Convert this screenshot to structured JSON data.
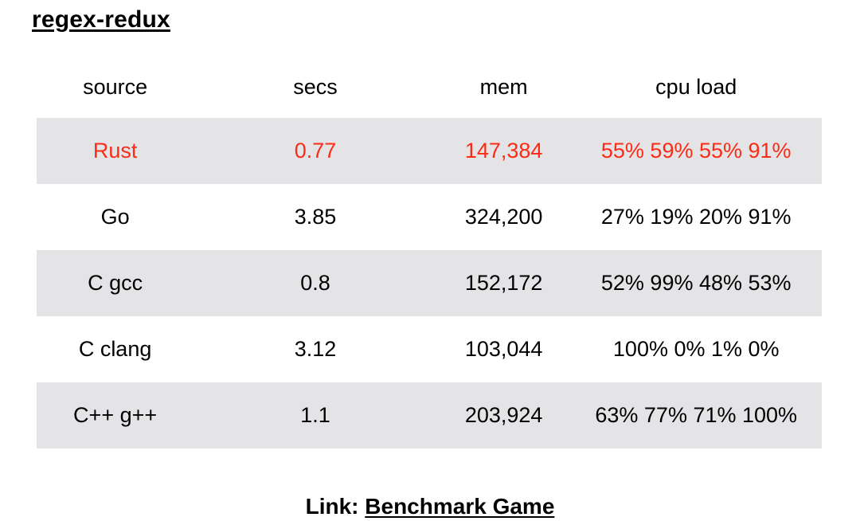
{
  "title": "regex-redux",
  "chart_data": {
    "type": "table",
    "title": "regex-redux",
    "columns": [
      "source",
      "secs",
      "mem",
      "cpu load"
    ],
    "rows": [
      [
        "Rust",
        "0.77",
        "147,384",
        "55% 59% 55% 91%"
      ],
      [
        "Go",
        "3.85",
        "324,200",
        "27% 19% 20% 91%"
      ],
      [
        "C gcc",
        "0.8",
        "152,172",
        "52% 99% 48% 53%"
      ],
      [
        "C clang",
        "3.12",
        "103,044",
        "100% 0% 1% 0%"
      ],
      [
        "C++ g++",
        "1.1",
        "203,924",
        "63% 77% 71% 100%"
      ]
    ],
    "highlighted_row": "Rust",
    "stripe_rows": [
      0,
      2,
      4
    ],
    "layout": "header row on white, data rows alternating gray/white stripes, all cells center-aligned"
  },
  "footer": {
    "prefix": "Link:",
    "link_label": "Benchmark Game"
  },
  "colors": {
    "highlight_text": "#fb2b16",
    "row_stripe": "#e4e4e7",
    "text": "#000000",
    "background": "#ffffff"
  }
}
